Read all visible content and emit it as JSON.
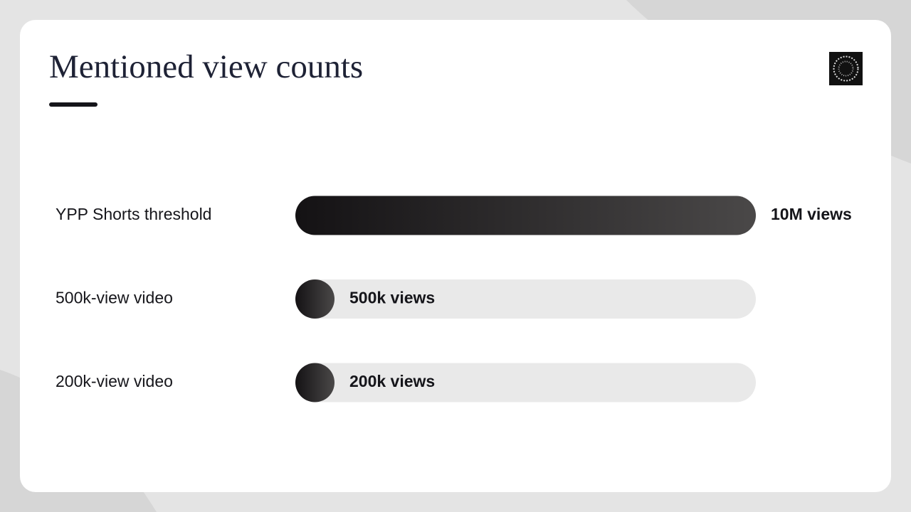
{
  "chart_data": {
    "type": "bar",
    "orientation": "horizontal",
    "title": "Mentioned view counts",
    "categories": [
      "YPP Shorts threshold",
      "500k-view video",
      "200k-view video"
    ],
    "values": [
      10000000,
      500000,
      200000
    ],
    "value_labels": [
      "10M views",
      "500k views",
      "200k views"
    ],
    "gradient": [
      "#141214",
      "#4a4848"
    ],
    "track_color": "#e9e9e9"
  }
}
